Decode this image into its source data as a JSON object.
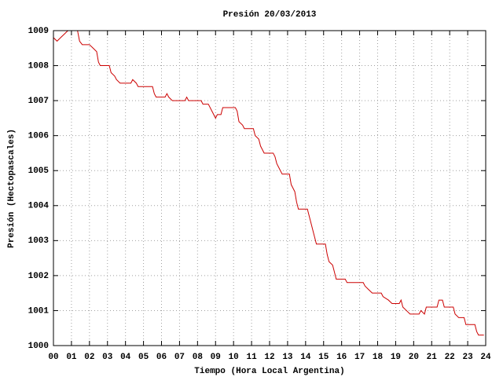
{
  "chart_data": {
    "type": "line",
    "title": "Presión 20/03/2013",
    "x_label": "Tiempo (Hora Local Argentina)",
    "y_label": "Presión (Hectopascales)",
    "xlim": [
      0,
      24
    ],
    "ylim": [
      1000,
      1009
    ],
    "xticks": [
      {
        "value": 0,
        "label": "00"
      },
      {
        "value": 1,
        "label": "01"
      },
      {
        "value": 2,
        "label": "02"
      },
      {
        "value": 3,
        "label": "03"
      },
      {
        "value": 4,
        "label": "04"
      },
      {
        "value": 5,
        "label": "05"
      },
      {
        "value": 6,
        "label": "06"
      },
      {
        "value": 7,
        "label": "07"
      },
      {
        "value": 8,
        "label": "08"
      },
      {
        "value": 9,
        "label": "09"
      },
      {
        "value": 10,
        "label": "10"
      },
      {
        "value": 11,
        "label": "11"
      },
      {
        "value": 12,
        "label": "12"
      },
      {
        "value": 13,
        "label": "13"
      },
      {
        "value": 14,
        "label": "14"
      },
      {
        "value": 15,
        "label": "15"
      },
      {
        "value": 16,
        "label": "16"
      },
      {
        "value": 17,
        "label": "17"
      },
      {
        "value": 18,
        "label": "18"
      },
      {
        "value": 19,
        "label": "19"
      },
      {
        "value": 20,
        "label": "20"
      },
      {
        "value": 21,
        "label": "21"
      },
      {
        "value": 22,
        "label": "22"
      },
      {
        "value": 23,
        "label": "23"
      },
      {
        "value": 24,
        "label": "24"
      }
    ],
    "yticks": [
      1000,
      1001,
      1002,
      1003,
      1004,
      1005,
      1006,
      1007,
      1008,
      1009
    ],
    "grid": true,
    "color": "#cc0000",
    "x": [
      0.0,
      0.2,
      0.4,
      0.6,
      0.8,
      1.0,
      1.3,
      1.45,
      1.6,
      2.0,
      2.2,
      2.4,
      2.5,
      2.6,
      3.1,
      3.2,
      3.4,
      3.5,
      3.7,
      4.3,
      4.4,
      4.6,
      4.7,
      5.5,
      5.6,
      5.7,
      6.2,
      6.3,
      6.4,
      6.6,
      7.3,
      7.4,
      7.5,
      8.2,
      8.3,
      8.6,
      8.8,
      9.0,
      9.1,
      9.3,
      9.4,
      10.1,
      10.2,
      10.3,
      10.5,
      10.6,
      11.1,
      11.2,
      11.4,
      11.5,
      11.7,
      12.2,
      12.3,
      12.4,
      12.6,
      12.7,
      13.1,
      13.2,
      13.3,
      13.4,
      13.5,
      13.6,
      14.1,
      14.2,
      14.3,
      14.4,
      14.5,
      14.6,
      15.1,
      15.2,
      15.3,
      15.5,
      15.6,
      15.7,
      16.2,
      16.3,
      17.2,
      17.3,
      17.5,
      17.7,
      18.2,
      18.3,
      18.6,
      18.8,
      19.2,
      19.3,
      19.4,
      19.6,
      19.8,
      20.3,
      20.4,
      20.6,
      20.7,
      21.3,
      21.4,
      21.6,
      21.7,
      22.2,
      22.3,
      22.5,
      22.8,
      22.9,
      23.4,
      23.5,
      23.6,
      23.9
    ],
    "values": [
      1008.8,
      1008.7,
      1008.8,
      1008.9,
      1009.0,
      1009.1,
      1009.1,
      1008.7,
      1008.6,
      1008.6,
      1008.5,
      1008.4,
      1008.1,
      1008.0,
      1008.0,
      1007.8,
      1007.7,
      1007.6,
      1007.5,
      1007.5,
      1007.6,
      1007.5,
      1007.4,
      1007.4,
      1007.2,
      1007.1,
      1007.1,
      1007.2,
      1007.1,
      1007.0,
      1007.0,
      1007.1,
      1007.0,
      1007.0,
      1006.9,
      1006.9,
      1006.7,
      1006.5,
      1006.6,
      1006.6,
      1006.8,
      1006.8,
      1006.7,
      1006.4,
      1006.3,
      1006.2,
      1006.2,
      1006.0,
      1005.9,
      1005.7,
      1005.5,
      1005.5,
      1005.4,
      1005.2,
      1005.0,
      1004.9,
      1004.9,
      1004.6,
      1004.5,
      1004.4,
      1004.1,
      1003.9,
      1003.9,
      1003.7,
      1003.5,
      1003.3,
      1003.1,
      1002.9,
      1002.9,
      1002.6,
      1002.4,
      1002.3,
      1002.1,
      1001.9,
      1001.9,
      1001.8,
      1001.8,
      1001.7,
      1001.6,
      1001.5,
      1001.5,
      1001.4,
      1001.3,
      1001.2,
      1001.2,
      1001.3,
      1001.1,
      1001.0,
      1000.9,
      1000.9,
      1001.0,
      1000.9,
      1001.1,
      1001.1,
      1001.3,
      1001.3,
      1001.1,
      1001.1,
      1000.9,
      1000.8,
      1000.8,
      1000.6,
      1000.6,
      1000.4,
      1000.3,
      1000.3
    ]
  }
}
